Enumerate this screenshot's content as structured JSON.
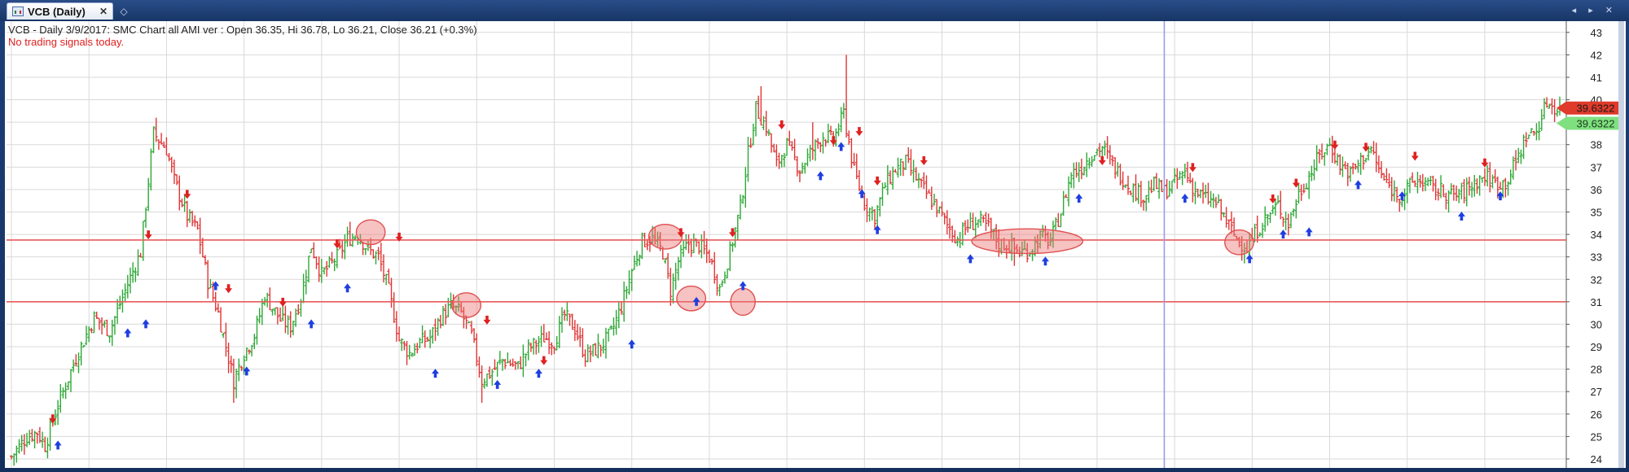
{
  "tab": {
    "title": "VCB (Daily)",
    "close_label": "✕",
    "new_label": "◇"
  },
  "window_controls": "◂ ▸ ✕",
  "header": {
    "line1": "VCB - Daily 3/9/2017: SMC Chart all AMI ver : Open 36.35, Hi 36.78, Lo 36.21, Close 36.21 (+0.3%)",
    "line2": "No trading signals today."
  },
  "colors": {
    "up": "#2ea836",
    "down": "#e03535",
    "grid": "#d9d9d9",
    "hline": "#e85a5a",
    "cursor": "#9a9ae8",
    "up_arrow": "#1f3fe0",
    "down_arrow": "#e02020",
    "last_price_bg": "#e03a2a",
    "last_price_bg2": "#7fe07f"
  },
  "chart_data": {
    "type": "ohlc",
    "symbol": "VCB",
    "period": "Daily",
    "ylim": [
      23.6,
      43.5
    ],
    "yticks": [
      24,
      25,
      26,
      27,
      28,
      29,
      30,
      31,
      32,
      33,
      34,
      35,
      36,
      37,
      38,
      39,
      40,
      41,
      42,
      43
    ],
    "grid": true,
    "bars_count": 300,
    "path": [
      [
        0,
        24.1
      ],
      [
        6,
        25.0
      ],
      [
        10,
        25.2
      ],
      [
        13,
        24.6
      ],
      [
        18,
        26.4
      ],
      [
        25,
        28.5
      ],
      [
        32,
        30.3
      ],
      [
        38,
        29.7
      ],
      [
        45,
        31.8
      ],
      [
        50,
        33.2
      ],
      [
        55,
        38.5
      ],
      [
        60,
        37.8
      ],
      [
        63,
        36.4
      ],
      [
        68,
        34.8
      ],
      [
        72,
        34.2
      ],
      [
        76,
        31.9
      ],
      [
        80,
        30.5
      ],
      [
        84,
        28.5
      ],
      [
        86,
        27.5
      ],
      [
        90,
        28.7
      ],
      [
        94,
        29.5
      ],
      [
        98,
        31.3
      ],
      [
        104,
        30.2
      ],
      [
        108,
        29.9
      ],
      [
        112,
        31.2
      ],
      [
        116,
        33.5
      ],
      [
        120,
        32.2
      ],
      [
        126,
        33.0
      ],
      [
        130,
        33.8
      ],
      [
        134,
        34.0
      ],
      [
        138,
        33.3
      ],
      [
        142,
        33.0
      ],
      [
        146,
        31.5
      ],
      [
        150,
        29.3
      ],
      [
        154,
        28.7
      ],
      [
        158,
        29.2
      ],
      [
        162,
        29.4
      ],
      [
        166,
        30.3
      ],
      [
        170,
        30.8
      ],
      [
        174,
        30.5
      ],
      [
        178,
        29.5
      ],
      [
        182,
        27.5
      ],
      [
        186,
        27.9
      ],
      [
        190,
        28.4
      ],
      [
        196,
        28.1
      ],
      [
        200,
        28.9
      ],
      [
        206,
        29.4
      ],
      [
        210,
        29.2
      ],
      [
        214,
        30.4
      ],
      [
        218,
        29.8
      ],
      [
        222,
        28.6
      ],
      [
        228,
        29.0
      ],
      [
        232,
        29.6
      ],
      [
        236,
        30.8
      ],
      [
        240,
        32.4
      ],
      [
        244,
        33.7
      ],
      [
        248,
        33.8
      ],
      [
        252,
        33.2
      ],
      [
        255,
        31.5
      ],
      [
        258,
        32.8
      ],
      [
        262,
        33.6
      ],
      [
        266,
        33.5
      ],
      [
        270,
        33.0
      ],
      [
        274,
        31.6
      ],
      [
        278,
        33.2
      ],
      [
        282,
        35.2
      ],
      [
        285,
        37.6
      ],
      [
        288,
        39.6
      ],
      [
        292,
        38.8
      ],
      [
        296,
        37.1
      ],
      [
        300,
        38.0
      ],
      [
        305,
        36.9
      ],
      [
        310,
        37.8
      ],
      [
        314,
        38.4
      ],
      [
        318,
        38.2
      ],
      [
        322,
        39.4
      ],
      [
        326,
        36.8
      ],
      [
        330,
        35.4
      ],
      [
        334,
        34.8
      ],
      [
        338,
        36.2
      ],
      [
        342,
        36.9
      ],
      [
        346,
        37.2
      ],
      [
        350,
        36.5
      ],
      [
        354,
        35.8
      ],
      [
        358,
        35.2
      ],
      [
        362,
        34.4
      ],
      [
        366,
        33.8
      ],
      [
        370,
        34.4
      ],
      [
        374,
        34.6
      ],
      [
        378,
        34.3
      ],
      [
        382,
        33.6
      ],
      [
        386,
        33.5
      ],
      [
        390,
        33.2
      ],
      [
        394,
        33.3
      ],
      [
        398,
        33.9
      ],
      [
        402,
        33.7
      ],
      [
        406,
        35.0
      ],
      [
        410,
        36.7
      ],
      [
        414,
        37.0
      ],
      [
        418,
        37.6
      ],
      [
        422,
        37.9
      ],
      [
        426,
        37.1
      ],
      [
        430,
        36.5
      ],
      [
        434,
        36.0
      ],
      [
        438,
        35.7
      ],
      [
        442,
        36.2
      ],
      [
        446,
        35.9
      ],
      [
        450,
        36.3
      ],
      [
        454,
        36.8
      ],
      [
        458,
        35.9
      ],
      [
        462,
        35.6
      ],
      [
        466,
        35.4
      ],
      [
        470,
        34.6
      ],
      [
        474,
        33.8
      ],
      [
        478,
        33.4
      ],
      [
        482,
        34.2
      ],
      [
        486,
        34.8
      ],
      [
        490,
        35.3
      ],
      [
        494,
        34.5
      ],
      [
        498,
        35.8
      ],
      [
        502,
        36.6
      ],
      [
        506,
        37.5
      ],
      [
        510,
        38.0
      ],
      [
        514,
        37.1
      ],
      [
        518,
        36.7
      ],
      [
        522,
        37.3
      ],
      [
        526,
        37.8
      ],
      [
        530,
        36.6
      ],
      [
        534,
        36.0
      ],
      [
        538,
        35.7
      ],
      [
        542,
        36.3
      ],
      [
        546,
        36.4
      ],
      [
        550,
        36.0
      ],
      [
        554,
        35.9
      ],
      [
        558,
        35.7
      ],
      [
        562,
        35.9
      ],
      [
        566,
        36.3
      ],
      [
        570,
        36.6
      ],
      [
        574,
        36.3
      ],
      [
        578,
        36.3
      ],
      [
        582,
        37.2
      ],
      [
        586,
        38.4
      ],
      [
        590,
        38.6
      ],
      [
        594,
        39.9
      ],
      [
        598,
        39.6
      ]
    ],
    "spikes": [
      {
        "i": 56,
        "hi": 39.2
      },
      {
        "i": 290,
        "hi": 40.6
      },
      {
        "i": 323,
        "hi": 42.0
      },
      {
        "i": 310,
        "hi": 39.0
      },
      {
        "i": 86,
        "lo": 26.5
      },
      {
        "i": 182,
        "lo": 26.5
      },
      {
        "i": 388,
        "lo": 32.6
      }
    ],
    "horizontal_lines": [
      33.75,
      31.0
    ],
    "cursor_index": 446,
    "ellipses": [
      {
        "i": 139,
        "price": 34.1,
        "rx": 1.3,
        "ry": 0.55
      },
      {
        "i": 176,
        "price": 30.85,
        "rx": 1.3,
        "ry": 0.55
      },
      {
        "i": 253,
        "price": 33.9,
        "rx": 1.5,
        "ry": 0.55
      },
      {
        "i": 263,
        "price": 31.15,
        "rx": 1.3,
        "ry": 0.55
      },
      {
        "i": 283,
        "price": 31.0,
        "rx": 1.1,
        "ry": 0.6
      },
      {
        "i": 393,
        "price": 33.7,
        "rx": 5.0,
        "ry": 0.55
      },
      {
        "i": 475,
        "price": 33.65,
        "rx": 1.3,
        "ry": 0.55
      }
    ],
    "buy_signals": [
      {
        "i": 18,
        "price": 24.6
      },
      {
        "i": 45,
        "price": 29.6
      },
      {
        "i": 52,
        "price": 30.0
      },
      {
        "i": 79,
        "price": 31.7
      },
      {
        "i": 91,
        "price": 27.9
      },
      {
        "i": 116,
        "price": 30.0
      },
      {
        "i": 130,
        "price": 31.6
      },
      {
        "i": 164,
        "price": 27.8
      },
      {
        "i": 188,
        "price": 27.3
      },
      {
        "i": 204,
        "price": 27.8
      },
      {
        "i": 240,
        "price": 29.1
      },
      {
        "i": 265,
        "price": 31.0
      },
      {
        "i": 283,
        "price": 31.7
      },
      {
        "i": 313,
        "price": 36.6
      },
      {
        "i": 321,
        "price": 37.9
      },
      {
        "i": 329,
        "price": 35.8
      },
      {
        "i": 335,
        "price": 34.2
      },
      {
        "i": 371,
        "price": 32.9
      },
      {
        "i": 400,
        "price": 32.8
      },
      {
        "i": 413,
        "price": 35.6
      },
      {
        "i": 454,
        "price": 35.6
      },
      {
        "i": 479,
        "price": 32.9
      },
      {
        "i": 492,
        "price": 34.0
      },
      {
        "i": 502,
        "price": 34.1
      },
      {
        "i": 521,
        "price": 36.2
      },
      {
        "i": 538,
        "price": 35.7
      },
      {
        "i": 561,
        "price": 34.8
      },
      {
        "i": 576,
        "price": 35.7
      }
    ],
    "sell_signals": [
      {
        "i": 16,
        "price": 25.8
      },
      {
        "i": 53,
        "price": 34.0
      },
      {
        "i": 68,
        "price": 35.8
      },
      {
        "i": 84,
        "price": 31.6
      },
      {
        "i": 105,
        "price": 31.0
      },
      {
        "i": 126,
        "price": 33.6
      },
      {
        "i": 150,
        "price": 33.9
      },
      {
        "i": 184,
        "price": 30.2
      },
      {
        "i": 206,
        "price": 28.4
      },
      {
        "i": 259,
        "price": 34.1
      },
      {
        "i": 279,
        "price": 34.1
      },
      {
        "i": 298,
        "price": 38.9
      },
      {
        "i": 318,
        "price": 38.2
      },
      {
        "i": 328,
        "price": 38.6
      },
      {
        "i": 335,
        "price": 36.4
      },
      {
        "i": 353,
        "price": 37.3
      },
      {
        "i": 422,
        "price": 37.3
      },
      {
        "i": 457,
        "price": 37.0
      },
      {
        "i": 488,
        "price": 35.6
      },
      {
        "i": 497,
        "price": 36.3
      },
      {
        "i": 512,
        "price": 38.0
      },
      {
        "i": 524,
        "price": 37.9
      },
      {
        "i": 543,
        "price": 37.5
      },
      {
        "i": 570,
        "price": 37.2
      }
    ],
    "last_price_labels": [
      "39.6322",
      "39.6322"
    ],
    "last_price_levels": [
      39.6322,
      38.95
    ],
    "x_grid_every": 30
  }
}
